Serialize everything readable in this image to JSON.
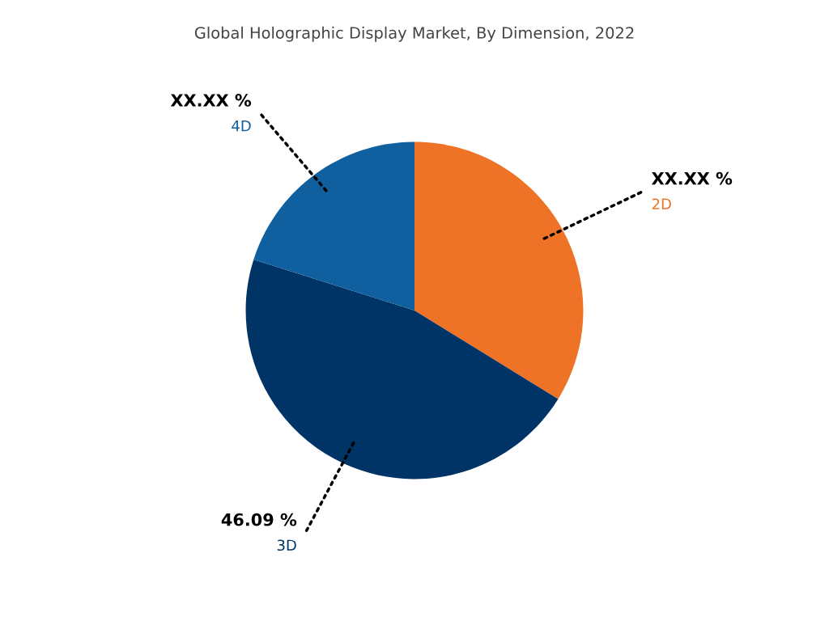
{
  "chart_data": {
    "type": "pie",
    "title": "Global Holographic Display Market, By Dimension, 2022",
    "categories": [
      "2D",
      "3D",
      "4D"
    ],
    "values": [
      33.8,
      46.09,
      20.11
    ],
    "value_labels": [
      "XX.XX %",
      "46.09 %",
      "XX.XX %"
    ],
    "colors": [
      "#ee7326",
      "#003366",
      "#1060a0"
    ],
    "legend": false
  }
}
